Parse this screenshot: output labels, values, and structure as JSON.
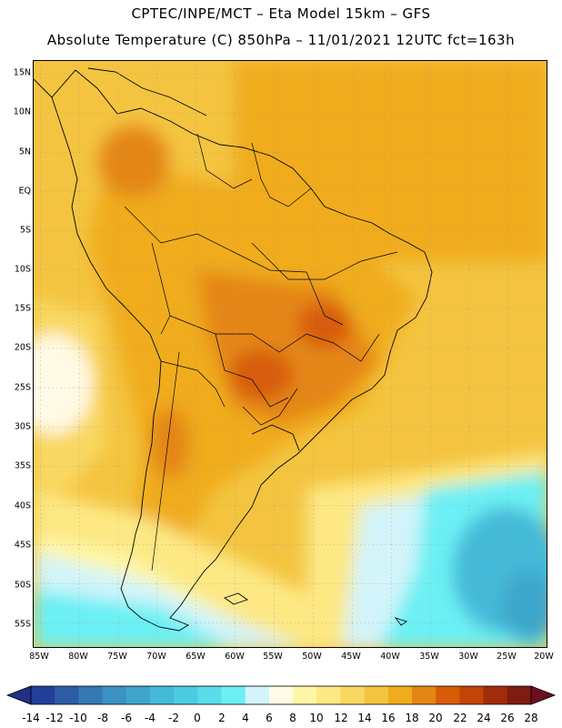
{
  "header": {
    "line1": "CPTEC/INPE/MCT –  Eta Model 15km – GFS",
    "line2": "Absolute Temperature (C) 850hPa – 11/01/2021 12UTC fct=163h"
  },
  "map": {
    "region": "South America",
    "variable": "Absolute Temperature",
    "units": "C",
    "level": "850hPa",
    "lat_labels": [
      "15N",
      "10N",
      "5N",
      "EQ",
      "5S",
      "10S",
      "15S",
      "20S",
      "25S",
      "30S",
      "35S",
      "40S",
      "45S",
      "50S",
      "55S"
    ],
    "lon_labels": [
      "85W",
      "80W",
      "75W",
      "70W",
      "65W",
      "60W",
      "55W",
      "50W",
      "45W",
      "40W",
      "35W",
      "30W",
      "25W",
      "20W"
    ]
  },
  "colorbar": {
    "labels": [
      "-14",
      "-12",
      "-10",
      "-8",
      "-6",
      "-4",
      "-2",
      "0",
      "2",
      "4",
      "6",
      "8",
      "10",
      "12",
      "14",
      "16",
      "18",
      "20",
      "22",
      "24",
      "26",
      "28"
    ],
    "colors": [
      "#22409a",
      "#2c5ca6",
      "#3478b4",
      "#3c92c2",
      "#3ea6cc",
      "#44bad8",
      "#4ccce2",
      "#5adcec",
      "#6cf0f4",
      "#d2f4fa",
      "#fffae6",
      "#fef6a6",
      "#fde884",
      "#f9d862",
      "#f4c440",
      "#f0ac1c",
      "#e48614",
      "#d85c08",
      "#c24406",
      "#a02c0a",
      "#7e1c10"
    ],
    "under_color": "#1f2f8a",
    "over_color": "#6c0e1e"
  }
}
